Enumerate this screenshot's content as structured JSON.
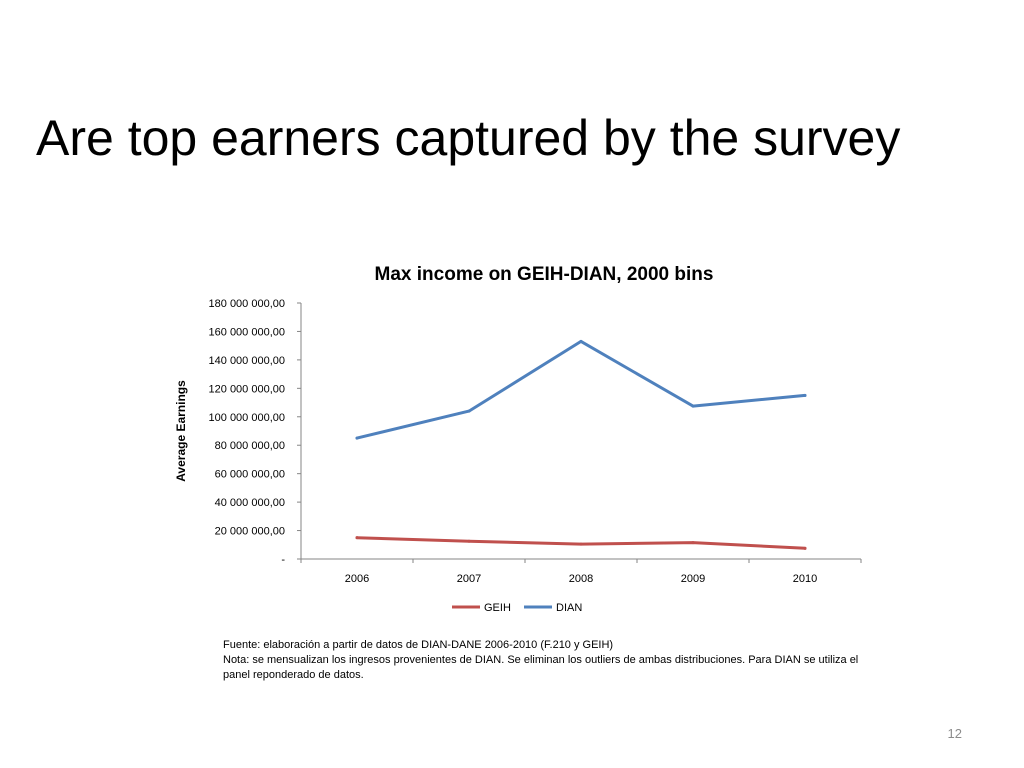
{
  "slide": {
    "title": "Are top earners captured by the survey",
    "page_number": "12"
  },
  "notes": {
    "source": "Fuente: elaboración a partir de datos de DIAN-DANE 2006-2010 (F.210 y GEIH)",
    "note": "Nota: se mensualizan los ingresos provenientes de DIAN. Se eliminan los outliers de ambas distribuciones. Para DIAN se utiliza el panel reponderado de datos."
  },
  "chart_data": {
    "type": "line",
    "title": "Max income on GEIH-DIAN, 2000 bins",
    "xlabel": "",
    "ylabel": "Average Earnings",
    "categories": [
      "2006",
      "2007",
      "2008",
      "2009",
      "2010"
    ],
    "ylim": [
      0,
      180000000
    ],
    "y_ticks": [
      0,
      20000000,
      40000000,
      60000000,
      80000000,
      100000000,
      120000000,
      140000000,
      160000000,
      180000000
    ],
    "y_tick_labels": [
      "-",
      "20 000 000,00",
      "40 000 000,00",
      "60 000 000,00",
      "80 000 000,00",
      "100 000 000,00",
      "120 000 000,00",
      "140 000 000,00",
      "160 000 000,00",
      "180 000 000,00"
    ],
    "grid": false,
    "legend_position": "bottom",
    "series": [
      {
        "name": "GEIH",
        "color": "#c0504d",
        "values": [
          15000000,
          12500000,
          10500000,
          11500000,
          7500000
        ]
      },
      {
        "name": "DIAN",
        "color": "#4f81bd",
        "values": [
          85000000,
          104000000,
          153000000,
          107500000,
          115000000
        ]
      }
    ]
  }
}
